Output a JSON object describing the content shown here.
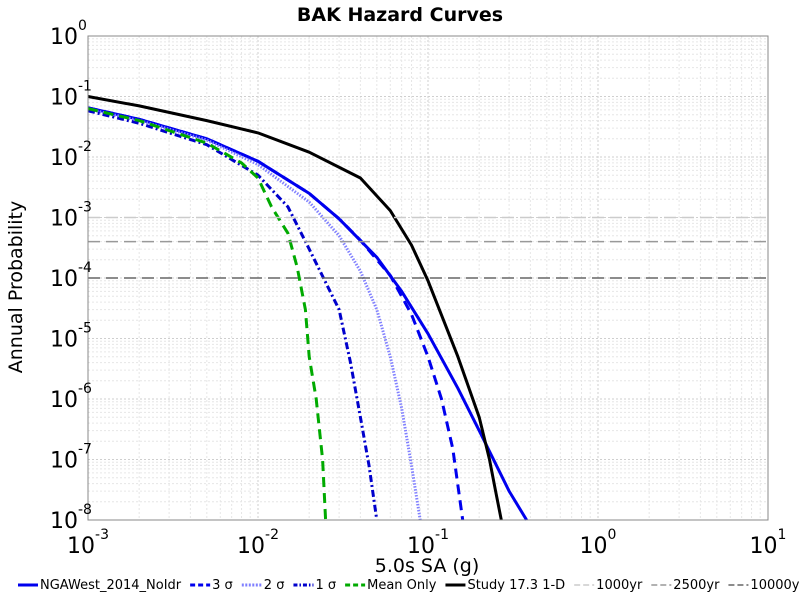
{
  "chart_data": {
    "type": "line",
    "title": "BAK Hazard Curves",
    "xlabel": "5.0s SA (g)",
    "ylabel": "Annual Probability",
    "x_scale": "log",
    "y_scale": "log",
    "xlim": [
      0.001,
      10
    ],
    "ylim": [
      1e-08,
      1
    ],
    "x_ticks": [
      {
        "base": "10",
        "exp": "-3",
        "value": 0.001
      },
      {
        "base": "10",
        "exp": "-2",
        "value": 0.01
      },
      {
        "base": "10",
        "exp": "-1",
        "value": 0.1
      },
      {
        "base": "10",
        "exp": "0",
        "value": 1
      },
      {
        "base": "10",
        "exp": "1",
        "value": 10
      }
    ],
    "y_ticks": [
      {
        "base": "10",
        "exp": "0",
        "value": 1
      },
      {
        "base": "10",
        "exp": "-1",
        "value": 0.1
      },
      {
        "base": "10",
        "exp": "-2",
        "value": 0.01
      },
      {
        "base": "10",
        "exp": "-3",
        "value": 0.001
      },
      {
        "base": "10",
        "exp": "-4",
        "value": 0.0001
      },
      {
        "base": "10",
        "exp": "-5",
        "value": 1e-05
      },
      {
        "base": "10",
        "exp": "-6",
        "value": 1e-06
      },
      {
        "base": "10",
        "exp": "-7",
        "value": 1e-07
      },
      {
        "base": "10",
        "exp": "-8",
        "value": 1e-08
      }
    ],
    "grid": true,
    "legend_position": "bottom",
    "series": [
      {
        "name": "NGAWest_2014_NoIdr",
        "color": "#0000ee",
        "style": "solid",
        "points": [
          [
            0.001,
            0.065
          ],
          [
            0.002,
            0.042
          ],
          [
            0.005,
            0.02
          ],
          [
            0.01,
            0.0085
          ],
          [
            0.02,
            0.0025
          ],
          [
            0.03,
            0.00095
          ],
          [
            0.05,
            0.00022
          ],
          [
            0.07,
            6e-05
          ],
          [
            0.1,
            1.2e-05
          ],
          [
            0.15,
            1.5e-06
          ],
          [
            0.2,
            3e-07
          ],
          [
            0.3,
            3e-08
          ],
          [
            0.38,
            1e-08
          ]
        ]
      },
      {
        "name": "3 σ",
        "color": "#0000ee",
        "style": "dashed",
        "points": [
          [
            0.001,
            0.065
          ],
          [
            0.002,
            0.042
          ],
          [
            0.005,
            0.02
          ],
          [
            0.01,
            0.0085
          ],
          [
            0.02,
            0.0025
          ],
          [
            0.03,
            0.00095
          ],
          [
            0.04,
            0.00042
          ],
          [
            0.06,
            0.00011
          ],
          [
            0.08,
            2.5e-05
          ],
          [
            0.1,
            5e-06
          ],
          [
            0.12,
            1e-06
          ],
          [
            0.14,
            1.5e-07
          ],
          [
            0.16,
            1e-08
          ]
        ]
      },
      {
        "name": "2 σ",
        "color": "#8080ff",
        "style": "dotted",
        "points": [
          [
            0.001,
            0.062
          ],
          [
            0.002,
            0.04
          ],
          [
            0.005,
            0.019
          ],
          [
            0.01,
            0.0075
          ],
          [
            0.02,
            0.0018
          ],
          [
            0.03,
            0.0005
          ],
          [
            0.04,
            0.00013
          ],
          [
            0.05,
            3e-05
          ],
          [
            0.06,
            5e-06
          ],
          [
            0.07,
            7e-07
          ],
          [
            0.08,
            8e-08
          ],
          [
            0.09,
            1e-08
          ]
        ]
      },
      {
        "name": "1 σ",
        "color": "#0000cc",
        "style": "dashdot",
        "points": [
          [
            0.001,
            0.058
          ],
          [
            0.002,
            0.036
          ],
          [
            0.005,
            0.016
          ],
          [
            0.01,
            0.005
          ],
          [
            0.015,
            0.0015
          ],
          [
            0.02,
            0.0003
          ],
          [
            0.03,
            3e-05
          ],
          [
            0.035,
            4e-06
          ],
          [
            0.04,
            5e-07
          ],
          [
            0.045,
            8e-08
          ],
          [
            0.05,
            1e-08
          ]
        ]
      },
      {
        "name": "Mean Only",
        "color": "#00aa00",
        "style": "dashed",
        "points": [
          [
            0.001,
            0.063
          ],
          [
            0.002,
            0.04
          ],
          [
            0.005,
            0.017
          ],
          [
            0.008,
            0.008
          ],
          [
            0.01,
            0.0045
          ],
          [
            0.012,
            0.0015
          ],
          [
            0.015,
            0.00055
          ],
          [
            0.017,
            0.00015
          ],
          [
            0.019,
            3e-05
          ],
          [
            0.02,
            5e-06
          ],
          [
            0.022,
            1e-06
          ],
          [
            0.024,
            1e-07
          ],
          [
            0.025,
            1e-08
          ]
        ]
      },
      {
        "name": "Study 17.3 1-D",
        "color": "#000000",
        "style": "solid",
        "points": [
          [
            0.001,
            0.1
          ],
          [
            0.002,
            0.07
          ],
          [
            0.005,
            0.04
          ],
          [
            0.01,
            0.025
          ],
          [
            0.02,
            0.012
          ],
          [
            0.04,
            0.0045
          ],
          [
            0.06,
            0.0013
          ],
          [
            0.08,
            0.00035
          ],
          [
            0.1,
            9e-05
          ],
          [
            0.15,
            5e-06
          ],
          [
            0.2,
            5e-07
          ],
          [
            0.23,
            1e-07
          ],
          [
            0.25,
            3e-08
          ],
          [
            0.27,
            1e-08
          ]
        ]
      },
      {
        "name": "1000yr",
        "color": "#cccccc",
        "style": "longdash",
        "y_value": 0.001
      },
      {
        "name": "2500yr",
        "color": "#999999",
        "style": "longdash",
        "y_value": 0.0004
      },
      {
        "name": "10000yr",
        "color": "#666666",
        "style": "longdash",
        "y_value": 0.0001
      }
    ]
  }
}
